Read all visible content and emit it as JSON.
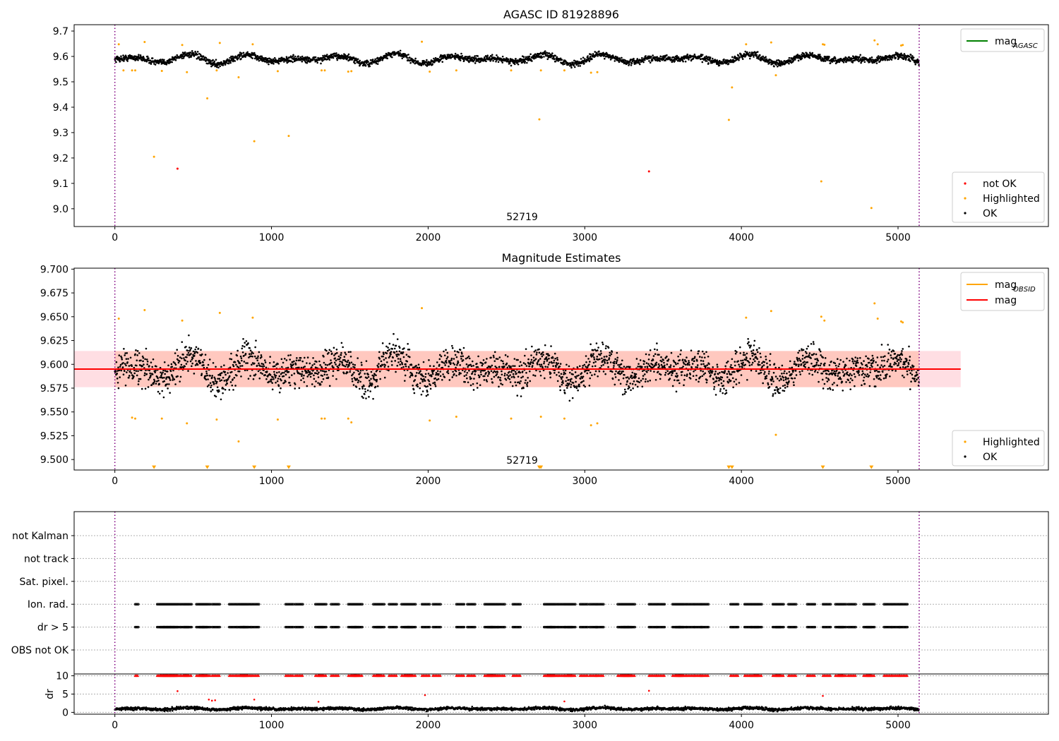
{
  "chart_data": [
    {
      "type": "scatter",
      "title": "AGASC ID 81928896",
      "xlabel": "",
      "ylabel": "",
      "xlim": [
        -260,
        5960
      ],
      "ylim": [
        8.93,
        9.725
      ],
      "xticks": [
        0,
        1000,
        2000,
        3000,
        4000,
        5000
      ],
      "yticks": [
        9.0,
        9.1,
        9.2,
        9.3,
        9.4,
        9.5,
        9.6,
        9.7
      ],
      "ytick_decimals": 1,
      "grid": false,
      "annotation": "52719",
      "vlines": [
        0,
        5135
      ],
      "legend_lines": [
        {
          "label": "mag",
          "sub": "AGASC",
          "color": "#008000"
        }
      ],
      "legend_points": [
        {
          "label": "not OK",
          "color": "#ff0000"
        },
        {
          "label": "Highlighted",
          "color": "#ffa500"
        },
        {
          "label": "OK",
          "color": "#000000"
        }
      ],
      "series": [
        {
          "name": "OK",
          "color": "#000000",
          "band": {
            "center": 9.59,
            "amplitude": 0.02,
            "noise": 0.012,
            "count": 2600
          },
          "x_range": [
            0,
            5135
          ]
        },
        {
          "name": "Highlighted",
          "color": "#ffa500",
          "x": [
            25,
            55,
            110,
            130,
            190,
            250,
            300,
            430,
            460,
            590,
            650,
            670,
            790,
            880,
            890,
            1040,
            1110,
            1320,
            1340,
            1490,
            1510,
            1960,
            2010,
            2180,
            2530,
            2710,
            2720,
            2870,
            3040,
            3080,
            3920,
            3940,
            4030,
            4190,
            4220,
            4510,
            4520,
            4530,
            4830,
            4850,
            4870,
            5020,
            5030
          ],
          "y": [
            9.648,
            9.545,
            9.545,
            9.545,
            9.657,
            9.205,
            9.543,
            9.645,
            9.538,
            9.435,
            9.545,
            9.653,
            9.518,
            9.648,
            9.266,
            9.542,
            9.287,
            9.545,
            9.545,
            9.54,
            9.542,
            9.658,
            9.54,
            9.545,
            9.545,
            9.352,
            9.545,
            9.545,
            9.536,
            9.538,
            9.35,
            9.478,
            9.648,
            9.655,
            9.526,
            9.108,
            9.648,
            9.646,
            9.003,
            9.663,
            9.648,
            9.643,
            9.645
          ]
        },
        {
          "name": "not OK",
          "color": "#ff0000",
          "x": [
            400,
            3410
          ],
          "y": [
            9.158,
            9.147
          ]
        }
      ]
    },
    {
      "type": "scatter",
      "title": "Magnitude Estimates",
      "xlabel": "",
      "ylabel": "",
      "xlim": [
        -260,
        5960
      ],
      "ylim": [
        9.489,
        9.701
      ],
      "xticks": [
        0,
        1000,
        2000,
        3000,
        4000,
        5000
      ],
      "yticks": [
        9.5,
        9.525,
        9.55,
        9.575,
        9.6,
        9.625,
        9.65,
        9.675,
        9.7
      ],
      "ytick_decimals": 3,
      "grid": false,
      "annotation": "52719",
      "vlines": [
        0,
        5135
      ],
      "mag_line": {
        "value": 9.595,
        "x_range": [
          -260,
          5400
        ],
        "color": "#ff0000"
      },
      "bands": [
        {
          "lo": 9.576,
          "hi": 9.614,
          "color": "#ffb6c1",
          "opacity": 0.45
        },
        {
          "lo": 9.576,
          "hi": 9.614,
          "x_range": [
            0,
            5135
          ],
          "color": "#ffa07a",
          "opacity": 0.35
        }
      ],
      "clipped_markers": {
        "y": 9.4915,
        "x": [
          250,
          590,
          890,
          1110,
          2710,
          2720,
          3920,
          3940,
          4520,
          4830
        ],
        "color": "#ffa500"
      },
      "legend_lines": [
        {
          "label": "mag",
          "sub": "OBSID",
          "color": "#ffa500"
        },
        {
          "label": "mag",
          "sub": "",
          "color": "#ff0000"
        }
      ],
      "legend_points": [
        {
          "label": "Highlighted",
          "color": "#ffa500"
        },
        {
          "label": "OK",
          "color": "#000000"
        }
      ],
      "series": [
        {
          "name": "OK",
          "color": "#000000",
          "band": {
            "center": 9.595,
            "amplitude": 0.015,
            "noise": 0.017,
            "count": 2600
          },
          "x_range": [
            0,
            5135
          ]
        },
        {
          "name": "Highlighted",
          "color": "#ffa500",
          "x": [
            25,
            110,
            130,
            190,
            300,
            430,
            460,
            650,
            670,
            790,
            880,
            1040,
            1320,
            1340,
            1490,
            1510,
            1960,
            2010,
            2180,
            2530,
            2720,
            2870,
            3040,
            3080,
            4030,
            4190,
            4220,
            4510,
            4530,
            4850,
            4870,
            5020,
            5030
          ],
          "y": [
            9.648,
            9.544,
            9.543,
            9.657,
            9.543,
            9.646,
            9.538,
            9.542,
            9.654,
            9.519,
            9.649,
            9.542,
            9.543,
            9.543,
            9.543,
            9.539,
            9.659,
            9.541,
            9.545,
            9.543,
            9.545,
            9.543,
            9.536,
            9.538,
            9.649,
            9.656,
            9.526,
            9.65,
            9.646,
            9.664,
            9.648,
            9.645,
            9.644
          ]
        }
      ]
    },
    {
      "type": "scatter",
      "title": "",
      "xlim": [
        -260,
        5960
      ],
      "vlines": [
        0,
        5135
      ],
      "flag_rows": [
        "not Kalman",
        "not track",
        "Sat. pixel.",
        "Ion. rad.",
        "dr > 5",
        "OBS not OK"
      ],
      "flag_events": [
        [
          0,
          5,
          130,
          20,
          270,
          50,
          290,
          50,
          310,
          50,
          330,
          50,
          350,
          50,
          370,
          50,
          420,
          50,
          440,
          50,
          520,
          50,
          540,
          50,
          560,
          50,
          620,
          50,
          730,
          50,
          780,
          50,
          800,
          50,
          820,
          50,
          870,
          50,
          1090,
          50,
          1150,
          50,
          1280,
          50,
          1300,
          50,
          1380,
          50,
          1490,
          50,
          1510,
          50,
          1530,
          50,
          1650,
          50,
          1670,
          50,
          1750,
          50,
          1830,
          50,
          1850,
          50,
          1870,
          50,
          1960,
          50,
          2030,
          50,
          2180,
          50,
          2250,
          50,
          2360,
          50,
          2380,
          50,
          2400,
          50,
          2440,
          50,
          2540,
          50,
          2740,
          50,
          2760,
          50,
          2780,
          50,
          2830,
          50,
          2870,
          50,
          2890,
          50,
          2970,
          50,
          3030,
          50,
          3070,
          50,
          3210,
          50,
          3230,
          50,
          3250,
          50,
          3270,
          50,
          3410,
          50,
          3460,
          50,
          3560,
          50,
          3580,
          50,
          3600,
          50,
          3650,
          50,
          3700,
          50,
          3740,
          50,
          3930,
          50,
          4020,
          50,
          4060,
          50,
          4080,
          50,
          4200,
          50,
          4220,
          50,
          4300,
          50,
          4420,
          50,
          4520,
          50,
          4600,
          50,
          4620,
          50,
          4680,
          50,
          4780,
          50,
          4800,
          50,
          4910,
          50,
          4960,
          50,
          5010,
          50
        ]
      ]
    },
    {
      "type": "scatter",
      "title": "",
      "xlabel": "",
      "ylabel": "dr",
      "xlim": [
        -260,
        5960
      ],
      "ylim": [
        -0.5,
        10.5
      ],
      "xticks": [
        0,
        1000,
        2000,
        3000,
        4000,
        5000
      ],
      "yticks": [
        0,
        5,
        10
      ],
      "ytick_decimals": 0,
      "grid": true,
      "vlines": [
        0,
        5135
      ],
      "series": [
        {
          "name": "OK",
          "color": "#000000",
          "band": {
            "center": 1.0,
            "amplitude": 0.3,
            "noise": 0.4,
            "count": 2600
          },
          "x_range": [
            0,
            5135
          ]
        },
        {
          "name": "dr > 5",
          "color": "#ff0000",
          "x": [
            400,
            600,
            620,
            640,
            890,
            1300,
            1980,
            2870,
            3410,
            4520
          ],
          "y": [
            5.8,
            3.5,
            3.2,
            3.3,
            3.5,
            2.9,
            4.7,
            3.0,
            5.9,
            4.5
          ]
        }
      ]
    }
  ]
}
